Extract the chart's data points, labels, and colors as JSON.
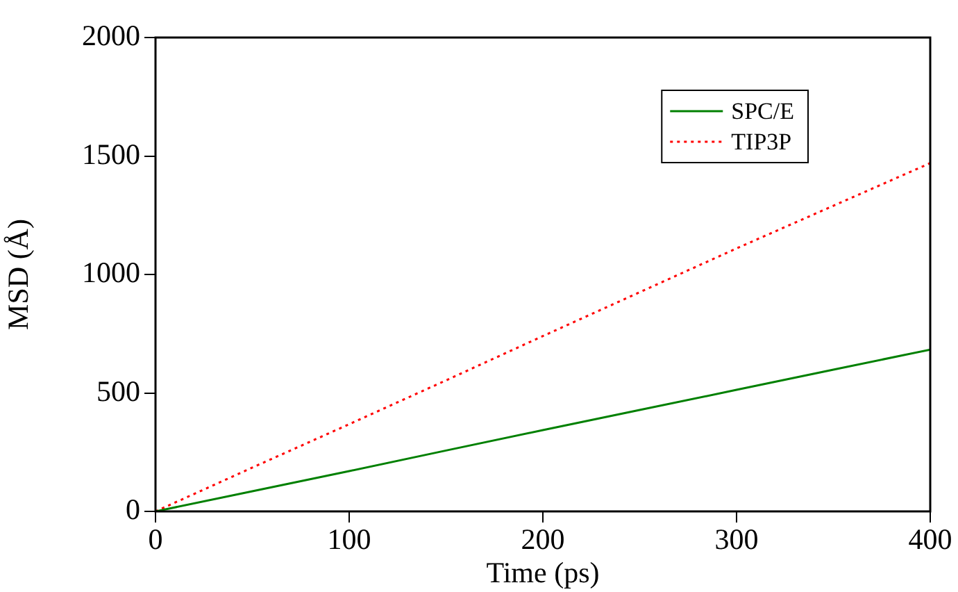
{
  "chart_data": {
    "type": "line",
    "xlabel": "Time (ps)",
    "ylabel": "MSD (Å)",
    "xlim": [
      0,
      400
    ],
    "xticks": [
      0,
      100,
      200,
      300,
      400
    ],
    "ylim": [
      0,
      2000
    ],
    "yticks": [
      0,
      500,
      1000,
      1500,
      2000
    ],
    "grid": false,
    "legend": "top right",
    "marker": "none",
    "x": [
      0,
      50,
      100,
      150,
      200,
      250,
      300,
      350,
      400
    ],
    "series": [
      {
        "name": "SPC/E",
        "color": "#008000",
        "line_style": "solid",
        "values": [
          0,
          85,
          170,
          257,
          343,
          428,
          513,
          598,
          683
        ]
      },
      {
        "name": "TIP3P",
        "color": "#ff0000",
        "line_style": "dotted",
        "values": [
          0,
          185,
          368,
          553,
          740,
          925,
          1110,
          1290,
          1470
        ]
      }
    ]
  }
}
